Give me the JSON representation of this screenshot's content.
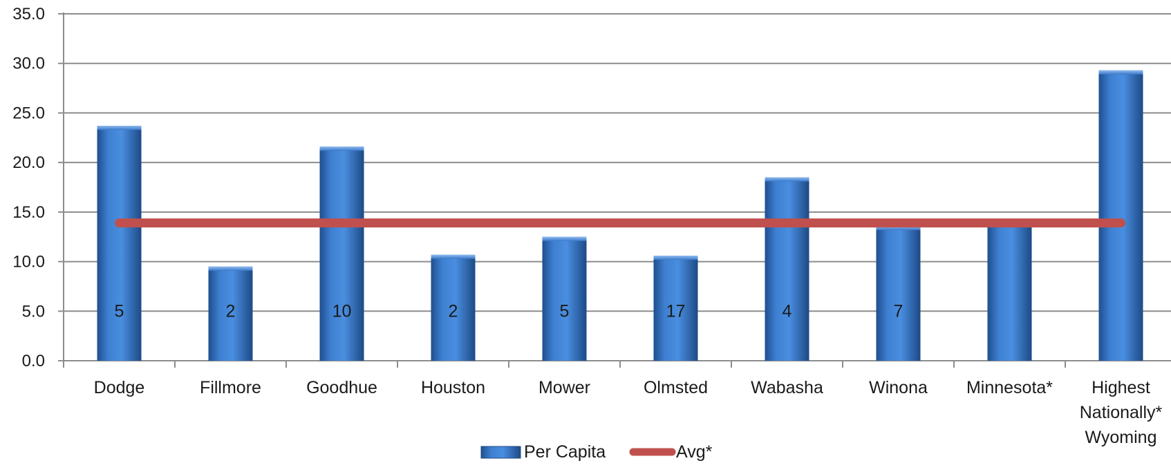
{
  "chart_data": {
    "type": "bar",
    "title": "",
    "xlabel": "",
    "ylabel": "",
    "ylim": [
      0,
      35
    ],
    "yticks": [
      "0.0",
      "5.0",
      "10.0",
      "15.0",
      "20.0",
      "25.0",
      "30.0",
      "35.0"
    ],
    "grid": true,
    "legend_position": "bottom",
    "categories": [
      [
        "Dodge"
      ],
      [
        "Fillmore"
      ],
      [
        "Goodhue"
      ],
      [
        "Houston"
      ],
      [
        "Mower"
      ],
      [
        "Olmsted"
      ],
      [
        "Wabasha"
      ],
      [
        "Winona"
      ],
      [
        "Minnesota*"
      ],
      [
        "Highest",
        "Nationally*",
        "Wyoming"
      ]
    ],
    "series": [
      {
        "name": "Per Capita",
        "kind": "bar",
        "color": "#3a78c9",
        "values": [
          23.7,
          9.5,
          21.6,
          10.7,
          12.5,
          10.6,
          18.5,
          13.6,
          13.9,
          29.3
        ],
        "data_labels": [
          "5",
          "2",
          "10",
          "2",
          "5",
          "17",
          "4",
          "7",
          "",
          ""
        ]
      },
      {
        "name": "Avg*",
        "kind": "line",
        "color": "#c0504d",
        "values": [
          13.9,
          13.9,
          13.9,
          13.9,
          13.9,
          13.9,
          13.9,
          13.9,
          13.9,
          13.9
        ]
      }
    ]
  }
}
